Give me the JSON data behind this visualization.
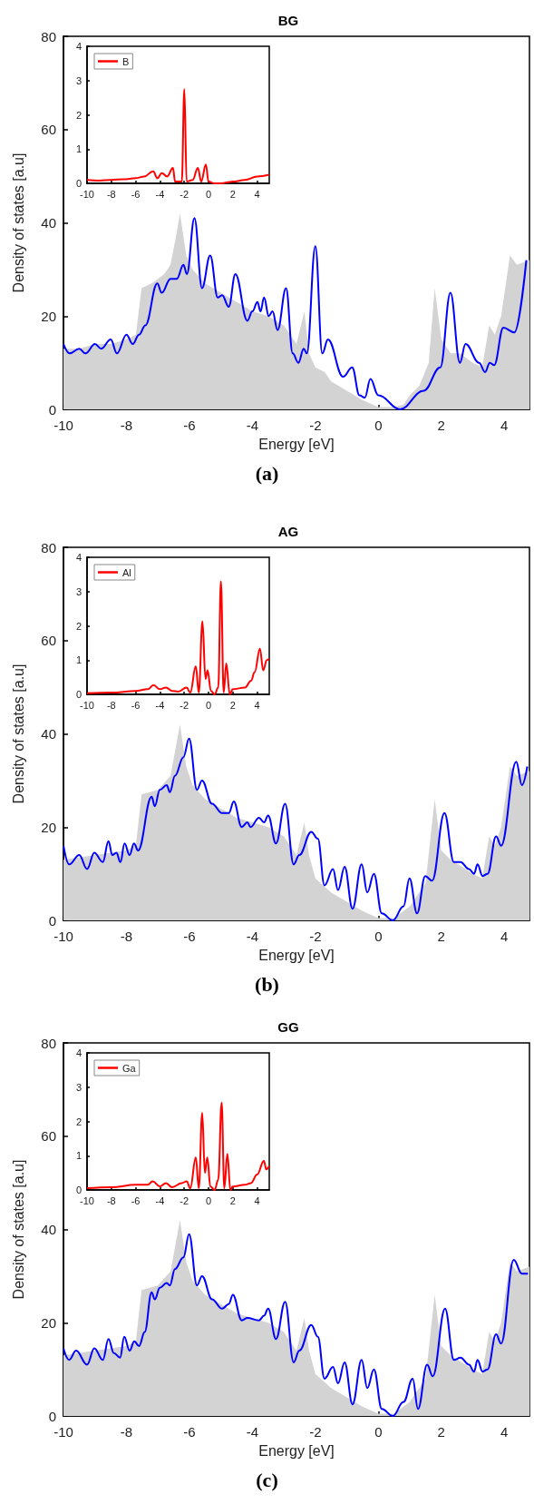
{
  "chart_data": [
    {
      "type": "area",
      "title": "BG",
      "xlabel": "Energy [eV]",
      "ylabel": "Density of states [a.u]",
      "annotations": [
        "(a)"
      ],
      "xlim": [
        -10,
        4.8
      ],
      "xticks": [
        -10,
        -8,
        -6,
        -4,
        -2,
        0,
        2,
        4
      ],
      "ylim": [
        0,
        80
      ],
      "yticks": [
        0,
        20,
        40,
        60,
        80
      ],
      "grid": false,
      "legend": false,
      "series": [
        {
          "color": "#d3d3d3",
          "x": [
            -10,
            -9.5,
            -9,
            -8.5,
            -8,
            -7.7,
            -7.52,
            -7.2,
            -7,
            -6.8,
            -6.6,
            -6.4,
            -6.3,
            -6.1,
            -5.9,
            -5.5,
            -5,
            -4.5,
            -4,
            -3.5,
            -3,
            -2.6,
            -2.35,
            -2.2,
            -2,
            -1.7,
            -1.5,
            -1,
            -0.5,
            0,
            0.5,
            0.8,
            1,
            1.3,
            1.6,
            1.79,
            2,
            2.3,
            2.6,
            3,
            3.3,
            3.52,
            3.7,
            3.9,
            4.18,
            4.4,
            4.8
          ],
          "values": [
            13,
            13,
            14,
            14,
            15,
            16,
            26,
            27,
            28,
            29,
            31,
            38,
            42,
            33,
            30,
            27,
            25,
            23,
            21,
            20,
            18,
            14,
            21,
            12,
            9,
            8,
            6,
            4,
            2,
            0.5,
            0.5,
            1,
            3,
            5,
            10,
            26,
            15,
            12,
            12,
            10,
            9,
            18,
            16,
            20,
            33,
            31,
            32
          ]
        },
        {
          "type": "line",
          "color": "#0000ff",
          "x": [
            -10,
            -9.8,
            -9.5,
            -9.3,
            -9,
            -8.8,
            -8.5,
            -8.3,
            -8,
            -7.8,
            -7.6,
            -7.4,
            -7.02,
            -6.88,
            -6.6,
            -6.4,
            -6.19,
            -6.08,
            -5.84,
            -5.6,
            -5.34,
            -5.1,
            -4.96,
            -4.75,
            -4.54,
            -4.16,
            -4,
            -3.84,
            -3.74,
            -3.63,
            -3.48,
            -3.36,
            -3.2,
            -2.93,
            -2.72,
            -2.54,
            -2.37,
            -2.27,
            -2,
            -1.78,
            -1.6,
            -1.12,
            -0.83,
            -0.6,
            -0.43,
            -0.25,
            0,
            0.69,
            1.44,
            1.97,
            2.29,
            2.59,
            2.77,
            3.2,
            3.39,
            3.54,
            3.68,
            3.97,
            4.32,
            4.7
          ],
          "values": [
            14,
            12,
            13,
            12,
            14,
            13,
            15,
            12,
            16,
            14,
            16,
            18,
            27,
            25,
            28,
            28,
            31,
            29,
            41,
            26,
            33,
            24,
            24.5,
            22,
            29,
            19,
            21,
            23,
            21,
            24,
            20,
            21,
            17,
            26,
            12,
            10,
            13,
            12,
            35,
            12,
            15,
            7,
            9,
            3,
            2.5,
            6.5,
            3,
            0,
            4,
            9,
            25,
            10,
            14,
            10,
            8,
            10,
            9.5,
            17.5,
            16.5,
            32
          ]
        }
      ]
    },
    {
      "type": "line",
      "xlim": [
        -10,
        5
      ],
      "xticks": [
        -10,
        -8,
        -6,
        -4,
        -2,
        0,
        2,
        4
      ],
      "ylim": [
        0,
        4
      ],
      "yticks": [
        0,
        1,
        2,
        3,
        4
      ],
      "grid": false,
      "legend": "top left",
      "series": [
        {
          "name": "B",
          "color": "#ff0000",
          "x": [
            -10,
            -9,
            -8,
            -7,
            -6,
            -5.3,
            -4.56,
            -4.2,
            -3.85,
            -3.4,
            -2.93,
            -2.75,
            -2.2,
            -1.99,
            -1.8,
            -1.3,
            -0.88,
            -0.6,
            -0.22,
            0,
            0.5,
            1,
            2,
            3,
            4,
            5
          ],
          "values": [
            0.1,
            0.08,
            0.1,
            0.12,
            0.15,
            0.2,
            0.35,
            0.15,
            0.3,
            0.2,
            0.45,
            0.05,
            0.05,
            2.75,
            0.05,
            0.1,
            0.45,
            0.05,
            0.55,
            0.05,
            0,
            0,
            0.05,
            0.1,
            0.2,
            0.25
          ]
        }
      ]
    },
    {
      "type": "area",
      "title": "AG",
      "xlabel": "Energy [eV]",
      "ylabel": "Density of states [a.u]",
      "annotations": [
        "(b)"
      ],
      "xlim": [
        -10,
        4.8
      ],
      "xticks": [
        -10,
        -8,
        -6,
        -4,
        -2,
        0,
        2,
        4
      ],
      "ylim": [
        0,
        80
      ],
      "yticks": [
        0,
        20,
        40,
        60,
        80
      ],
      "grid": false,
      "legend": false,
      "series": [
        {
          "color": "#d3d3d3",
          "x": [
            -10,
            -9,
            -8,
            -7.7,
            -7.52,
            -7,
            -6.6,
            -6.3,
            -6.1,
            -5.9,
            -5.5,
            -5,
            -4.5,
            -4,
            -3.5,
            -3,
            -2.6,
            -2.35,
            -2.2,
            -2,
            -1.5,
            -1,
            -0.5,
            0,
            0.5,
            1,
            1.5,
            1.79,
            2,
            2.3,
            3,
            3.3,
            3.52,
            3.7,
            3.9,
            4.18,
            4.4,
            4.8
          ],
          "values": [
            13,
            14,
            15,
            16,
            27,
            28,
            31,
            42,
            33,
            29,
            26,
            24,
            22,
            21,
            20,
            18,
            14,
            21,
            14,
            9,
            6,
            4,
            2,
            0.5,
            0.5,
            3,
            8,
            26,
            15,
            13,
            10,
            9,
            18,
            16,
            20,
            33,
            31,
            32
          ]
        },
        {
          "type": "line",
          "color": "#0000ff",
          "x": [
            -10,
            -9.82,
            -9.5,
            -9.25,
            -9.02,
            -8.75,
            -8.57,
            -8.45,
            -8.32,
            -8.19,
            -8.06,
            -7.9,
            -7.76,
            -7.63,
            -7.2,
            -7.1,
            -6.94,
            -6.72,
            -6.62,
            -6.46,
            -6.19,
            -6.01,
            -5.76,
            -5.6,
            -5.28,
            -4.96,
            -4.75,
            -4.59,
            -4.34,
            -4.16,
            -4.06,
            -3.79,
            -3.63,
            -3.5,
            -3.25,
            -2.96,
            -2.69,
            -2.51,
            -2.13,
            -1.92,
            -1.71,
            -1.44,
            -1.28,
            -1.07,
            -0.82,
            -0.53,
            -0.35,
            -0.14,
            0.11,
            0.46,
            0.8,
            0.99,
            1.23,
            1.49,
            1.71,
            2.1,
            2.4,
            2.61,
            2.88,
            3.04,
            3.15,
            3.31,
            3.47,
            3.74,
            3.9,
            4.38,
            4.56,
            4.73
          ],
          "values": [
            16,
            12,
            14,
            11,
            14.5,
            12.5,
            17,
            14,
            14.5,
            12.5,
            16.5,
            14,
            16.5,
            15,
            26.5,
            24.5,
            28,
            29,
            27.5,
            31,
            35,
            39,
            28,
            30,
            25,
            23,
            23,
            25.5,
            20,
            21,
            20,
            22,
            21,
            22.5,
            16.5,
            25,
            12,
            14,
            19,
            17.5,
            7.5,
            11,
            6.5,
            11.5,
            2.5,
            12,
            6,
            10,
            1.5,
            0,
            3,
            9,
            1.5,
            9.5,
            8.5,
            23,
            12.5,
            12.5,
            11,
            10,
            12,
            9.5,
            10,
            18,
            16,
            34,
            29,
            33
          ]
        }
      ]
    },
    {
      "type": "line",
      "xlim": [
        -10,
        5
      ],
      "xticks": [
        -10,
        -8,
        -6,
        -4,
        -2,
        0,
        2,
        4
      ],
      "ylim": [
        0,
        4
      ],
      "yticks": [
        0,
        1,
        2,
        3,
        4
      ],
      "grid": false,
      "legend": "top left",
      "series": [
        {
          "name": "Al",
          "color": "#ff0000",
          "x": [
            -10,
            -8,
            -6,
            -5,
            -4.53,
            -4,
            -3.5,
            -3,
            -2.5,
            -1.8,
            -1.5,
            -1.05,
            -0.8,
            -0.5,
            -0.25,
            -0.08,
            0.2,
            0.5,
            0.8,
            1.02,
            1.25,
            1.46,
            1.75,
            2,
            3,
            3.5,
            3.8,
            4.23,
            4.5,
            4.8,
            5
          ],
          "values": [
            0.03,
            0.05,
            0.1,
            0.15,
            0.27,
            0.15,
            0.2,
            0.1,
            0.08,
            0.2,
            0.05,
            0.82,
            0.05,
            2.13,
            0.45,
            0.7,
            0.1,
            0,
            0.2,
            3.3,
            0.05,
            0.9,
            0,
            0.15,
            0.2,
            0.4,
            0.65,
            1.33,
            0.7,
            1,
            1.05
          ]
        }
      ]
    },
    {
      "type": "area",
      "title": "GG",
      "xlabel": "Energy [eV]",
      "ylabel": "Density of states [a.u]",
      "annotations": [
        "(c)"
      ],
      "xlim": [
        -10,
        4.8
      ],
      "xticks": [
        -10,
        -8,
        -6,
        -4,
        -2,
        0,
        2,
        4
      ],
      "ylim": [
        0,
        80
      ],
      "yticks": [
        0,
        20,
        40,
        60,
        80
      ],
      "grid": false,
      "legend": false,
      "series": [
        {
          "color": "#d3d3d3",
          "x": [
            -10,
            -9,
            -8,
            -7.7,
            -7.52,
            -7,
            -6.6,
            -6.3,
            -6.1,
            -5.9,
            -5.5,
            -5,
            -4.5,
            -4,
            -3.5,
            -3,
            -2.6,
            -2.35,
            -2.2,
            -2,
            -1.5,
            -1,
            -0.5,
            0,
            0.5,
            1,
            1.5,
            1.79,
            2,
            2.3,
            3,
            3.3,
            3.52,
            3.7,
            3.9,
            4.18,
            4.4,
            4.8
          ],
          "values": [
            13,
            14,
            15,
            16,
            27,
            28,
            31,
            42,
            33,
            29,
            26,
            24,
            22,
            21,
            20,
            18,
            14,
            21,
            14,
            9,
            6,
            4,
            2,
            0.5,
            0.5,
            3,
            8,
            26,
            15,
            13,
            10,
            9,
            18,
            16,
            20,
            33,
            31,
            32
          ]
        },
        {
          "type": "line",
          "color": "#0000ff",
          "x": [
            -10,
            -9.82,
            -9.6,
            -9.25,
            -9.02,
            -8.75,
            -8.57,
            -8.4,
            -8.2,
            -8.07,
            -7.9,
            -7.75,
            -7.6,
            -7.42,
            -7.2,
            -7.1,
            -6.94,
            -6.72,
            -6.62,
            -6.46,
            -6.19,
            -6.01,
            -5.76,
            -5.6,
            -5.28,
            -4.96,
            -4.75,
            -4.62,
            -4.34,
            -4.16,
            -3.79,
            -3.63,
            -3.5,
            -3.25,
            -2.96,
            -2.69,
            -2.51,
            -2.13,
            -1.92,
            -1.71,
            -1.44,
            -1.28,
            -1.07,
            -0.82,
            -0.53,
            -0.35,
            -0.14,
            0.11,
            0.46,
            0.8,
            1.09,
            1.26,
            1.55,
            1.73,
            2.12,
            2.4,
            2.61,
            2.88,
            3.04,
            3.15,
            3.31,
            3.47,
            3.74,
            3.9,
            4.3,
            4.56,
            4.75
          ],
          "values": [
            14.5,
            12,
            14,
            11,
            14.5,
            12,
            16.5,
            13.5,
            12.5,
            17,
            14,
            16,
            15,
            18,
            26.5,
            25,
            27.5,
            28.5,
            28,
            31.5,
            34,
            39,
            28,
            30,
            25,
            23,
            24,
            26,
            20.5,
            21,
            20.5,
            21.5,
            23,
            16.5,
            24.5,
            11.5,
            14,
            19.5,
            17,
            8,
            10.5,
            7,
            11.5,
            2.5,
            12,
            6,
            10,
            1.5,
            0,
            3,
            8,
            1.5,
            11,
            8.5,
            23,
            12,
            12.5,
            11,
            9.5,
            12,
            9.5,
            10,
            17.5,
            15.5,
            33.5,
            30.5,
            30.5
          ]
        }
      ]
    },
    {
      "type": "line",
      "xlim": [
        -10,
        5
      ],
      "xticks": [
        -10,
        -8,
        -6,
        -4,
        -2,
        0,
        2,
        4
      ],
      "ylim": [
        0,
        4
      ],
      "yticks": [
        0,
        1,
        2,
        3,
        4
      ],
      "grid": false,
      "legend": "top left",
      "series": [
        {
          "name": "Ga",
          "color": "#ff0000",
          "x": [
            -10,
            -8,
            -6,
            -5,
            -4.6,
            -4,
            -3.5,
            -3,
            -2.2,
            -1.8,
            -1.5,
            -1.05,
            -0.8,
            -0.52,
            -0.3,
            -0.1,
            0.15,
            0.5,
            0.8,
            1.08,
            1.3,
            1.55,
            1.8,
            2,
            3,
            3.5,
            4,
            4.56,
            4.75,
            5
          ],
          "values": [
            0.05,
            0.08,
            0.15,
            0.15,
            0.25,
            0.1,
            0.2,
            0.08,
            0.2,
            0.25,
            0.05,
            0.95,
            0.05,
            2.25,
            0.5,
            0.95,
            0.1,
            0,
            0.3,
            2.55,
            0.05,
            1.05,
            0,
            0.1,
            0.15,
            0.2,
            0.45,
            0.85,
            0.6,
            0.7
          ]
        }
      ]
    }
  ]
}
